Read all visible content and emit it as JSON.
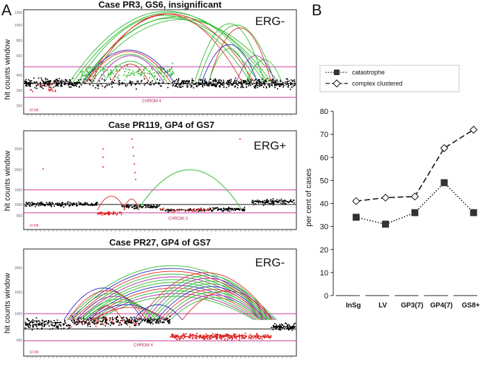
{
  "figure": {
    "label_a": "A",
    "label_b": "B",
    "hit_axis_label": "hit counts window"
  },
  "panels": [
    {
      "id": "pr3",
      "title": "Case PR3, GS6, insignificant",
      "status": "ERG-",
      "chrom_label": "CHROM 4",
      "scale_note": "10 KB",
      "y_ticks": [
        "200",
        "300",
        "400",
        "600",
        "800",
        "1000",
        "1200"
      ]
    },
    {
      "id": "pr119",
      "title": "Case PR119, GP4 of GS7",
      "status": "ERG+",
      "chrom_label": "CHROM 3",
      "scale_note": "10 KB",
      "y_ticks": [
        "500",
        "1000",
        "1500",
        "2000",
        "2500"
      ]
    },
    {
      "id": "pr27",
      "title": "Case PR27, GP4 of GS7",
      "status": "ERG-",
      "chrom_label": "CHROM 4",
      "scale_note": "10 KB",
      "y_ticks": [
        "500",
        "1000",
        "1500",
        "2000"
      ]
    }
  ],
  "chart_data": {
    "type": "line",
    "title": "",
    "xlabel": "",
    "ylabel": "per cent of cases",
    "ylim": [
      0,
      80
    ],
    "yticks": [
      0,
      10,
      20,
      30,
      40,
      50,
      60,
      70,
      80
    ],
    "categories": [
      "InSg",
      "LV",
      "GP3(7)",
      "GP4(7)",
      "GS8+"
    ],
    "series": [
      {
        "name": "catastrophe",
        "line": "dotted",
        "marker": "filled-square",
        "values": [
          34,
          31,
          36,
          49,
          36
        ]
      },
      {
        "name": "complex clustered",
        "line": "dashed",
        "marker": "open-diamond",
        "values": [
          41,
          42.5,
          43,
          64,
          72
        ]
      }
    ],
    "legend_position": "top-left",
    "colors": {
      "line": "#111111",
      "marker_fill": "#333333"
    }
  }
}
